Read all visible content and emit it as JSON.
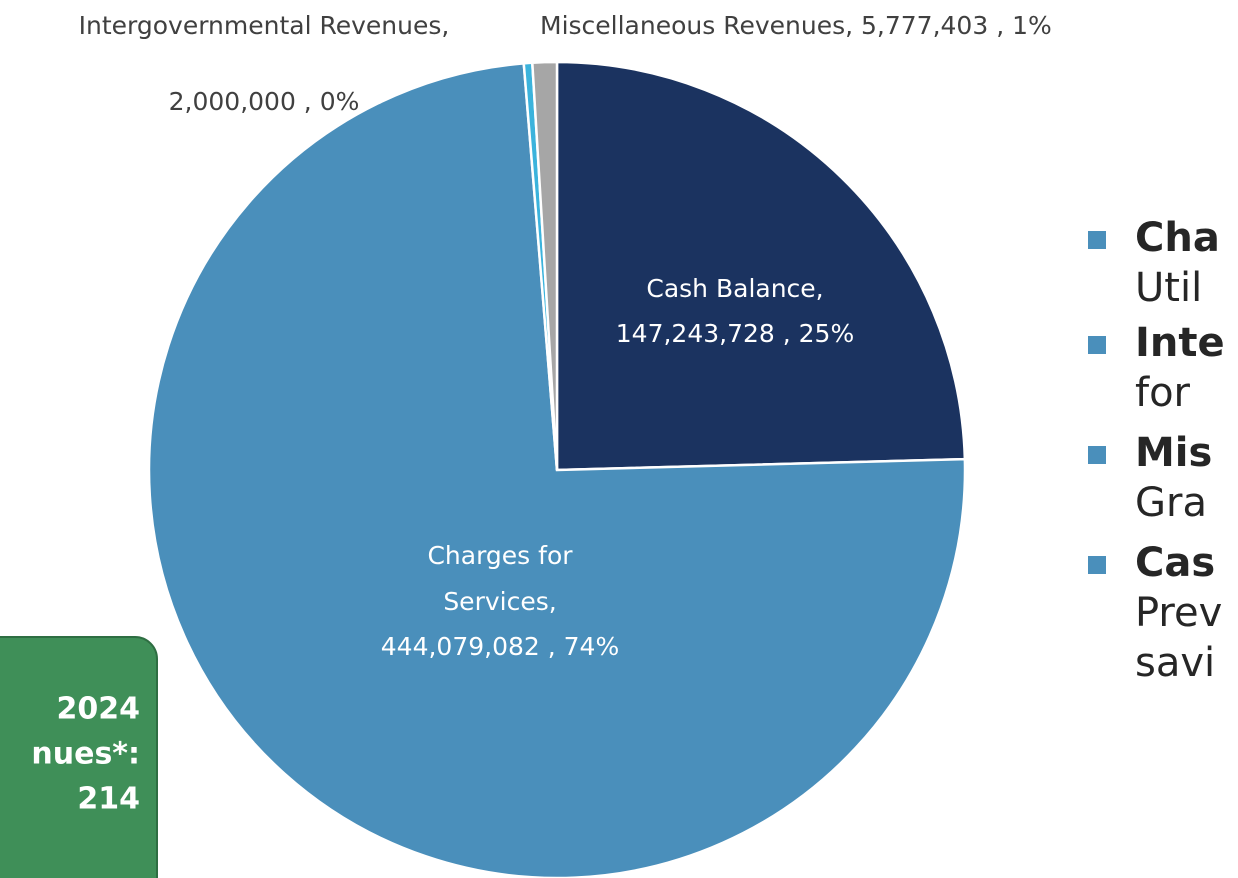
{
  "chart_data": {
    "type": "pie",
    "categories": [
      "Cash Balance",
      "Charges for Services",
      "Intergovernmental Revenues",
      "Miscellaneous Revenues"
    ],
    "values": [
      147243728,
      444079082,
      2000000,
      5777403
    ],
    "value_labels": [
      "147,243,728 , 25%",
      "444,079,082 , 74%",
      "2,000,000 , 0%",
      "5,777,403 , 1%"
    ],
    "colors": [
      "#1b3360",
      "#4a8fbb",
      "#3bb3dc",
      "#a6a6a6"
    ]
  },
  "callout": {
    "lines": [
      "2024",
      "nues*:",
      "214"
    ]
  },
  "bullets": [
    {
      "title": "Cha",
      "text": "Util"
    },
    {
      "title": "Inte",
      "text": "for"
    },
    {
      "title": "Mis",
      "text": "Gra"
    },
    {
      "title": "Cas",
      "text": "Prev",
      "text2": "savi"
    }
  ]
}
